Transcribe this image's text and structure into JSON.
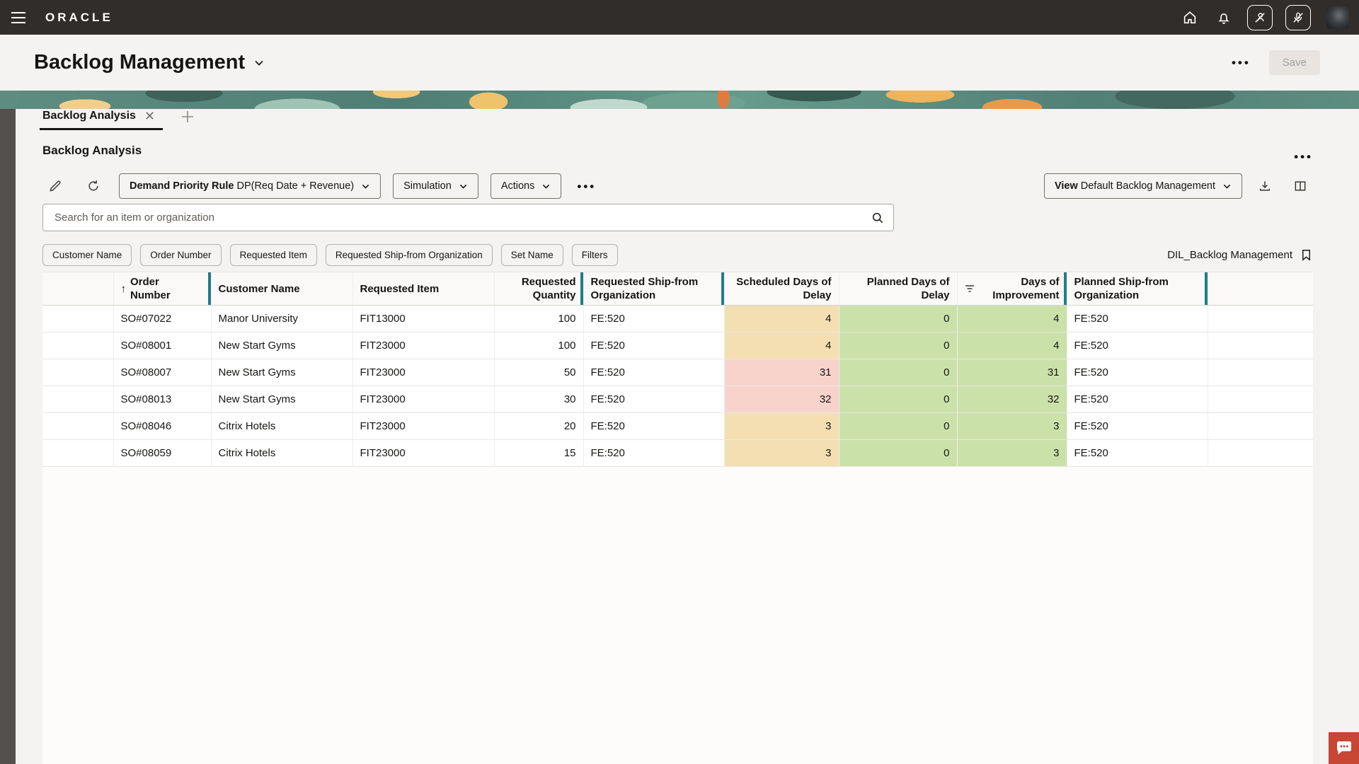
{
  "topbar": {
    "logo": "ORACLE"
  },
  "header": {
    "title": "Backlog Management",
    "more_label": "•••",
    "save_label": "Save"
  },
  "tabs": {
    "active_label": "Backlog Analysis"
  },
  "section": {
    "title": "Backlog Analysis",
    "more_label": "•••"
  },
  "toolbar": {
    "demand_priority_label": "Demand Priority Rule",
    "demand_priority_value": "DP(Req Date + Revenue)",
    "simulation_label": "Simulation",
    "actions_label": "Actions",
    "more_label": "•••",
    "view_label": "View",
    "view_value": "Default Backlog Management"
  },
  "search": {
    "placeholder": "Search for an item or organization"
  },
  "filters": {
    "chips": [
      "Customer Name",
      "Order Number",
      "Requested Item",
      "Requested Ship-from Organization",
      "Set Name",
      "Filters"
    ],
    "saved_search": "DIL_Backlog Management"
  },
  "table": {
    "columns": [
      "",
      "Order Number",
      "Customer Name",
      "Requested Item",
      "Requested Quantity",
      "Requested Ship-from Organization",
      "Scheduled Days of Delay",
      "Planned Days of Delay",
      "Days of Improvement",
      "Planned Ship-from Organization"
    ],
    "sort_column": "Order Number",
    "sort_direction": "ascending",
    "rows": [
      {
        "order": "SO#07022",
        "customer": "Manor University",
        "item": "FIT13000",
        "qty": "100",
        "req_org": "FE:520",
        "sched": "4",
        "planned": "0",
        "improve": "4",
        "plan_org": "FE:520",
        "sched_level": "warning"
      },
      {
        "order": "SO#08001",
        "customer": "New Start Gyms",
        "item": "FIT23000",
        "qty": "100",
        "req_org": "FE:520",
        "sched": "4",
        "planned": "0",
        "improve": "4",
        "plan_org": "FE:520",
        "sched_level": "warning"
      },
      {
        "order": "SO#08007",
        "customer": "New Start Gyms",
        "item": "FIT23000",
        "qty": "50",
        "req_org": "FE:520",
        "sched": "31",
        "planned": "0",
        "improve": "31",
        "plan_org": "FE:520",
        "sched_level": "danger"
      },
      {
        "order": "SO#08013",
        "customer": "New Start Gyms",
        "item": "FIT23000",
        "qty": "30",
        "req_org": "FE:520",
        "sched": "32",
        "planned": "0",
        "improve": "32",
        "plan_org": "FE:520",
        "sched_level": "danger"
      },
      {
        "order": "SO#08046",
        "customer": "Citrix Hotels",
        "item": "FIT23000",
        "qty": "20",
        "req_org": "FE:520",
        "sched": "3",
        "planned": "0",
        "improve": "3",
        "plan_org": "FE:520",
        "sched_level": "warning"
      },
      {
        "order": "SO#08059",
        "customer": "Citrix Hotels",
        "item": "FIT23000",
        "qty": "15",
        "req_org": "FE:520",
        "sched": "3",
        "planned": "0",
        "improve": "3",
        "plan_org": "FE:520",
        "sched_level": "warning"
      }
    ]
  },
  "colors": {
    "topbar_bg": "#312D2A",
    "accent_teal": "#227C8D",
    "cell_warning": "#F4DFB3",
    "cell_danger": "#F8D3CB",
    "cell_success": "#CAE2AA",
    "feedback_red": "#C74634"
  }
}
